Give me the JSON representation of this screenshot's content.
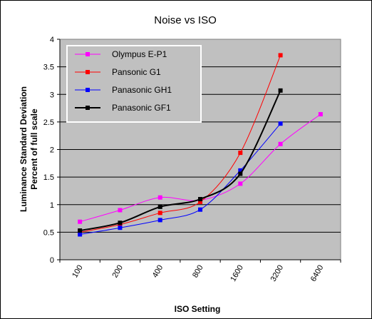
{
  "chart_data": {
    "type": "line",
    "title": "Noise vs ISO",
    "xlabel": "ISO Setting",
    "ylabel": "Luminance Standard Deviation Percent of full scale",
    "ylabel_lines": [
      "Luminance Standard Deviation",
      "Percent of full scale"
    ],
    "categories": [
      "100",
      "200",
      "400",
      "800",
      "1600",
      "3200",
      "6400"
    ],
    "yticks": [
      "0",
      "0.5",
      "1",
      "1.5",
      "2",
      "2.5",
      "3",
      "3.5",
      "4"
    ],
    "ylim": [
      0,
      4
    ],
    "grid": true,
    "legend_position": "top-left",
    "series": [
      {
        "name": "Olympus E-P1",
        "color": "#ff00ff",
        "values": [
          0.69,
          0.9,
          1.13,
          1.08,
          1.38,
          2.1,
          2.64
        ]
      },
      {
        "name": "Pansonic G1",
        "color": "#ff0000",
        "values": [
          0.5,
          0.64,
          0.85,
          1.05,
          1.94,
          3.71,
          null
        ]
      },
      {
        "name": "Panasonic GH1",
        "color": "#0000ff",
        "values": [
          0.46,
          0.58,
          0.72,
          0.91,
          1.62,
          2.47,
          null
        ]
      },
      {
        "name": "Panasonic GF1",
        "color": "#000000",
        "values": [
          0.53,
          0.67,
          0.96,
          1.1,
          1.56,
          3.07,
          null
        ]
      }
    ]
  }
}
